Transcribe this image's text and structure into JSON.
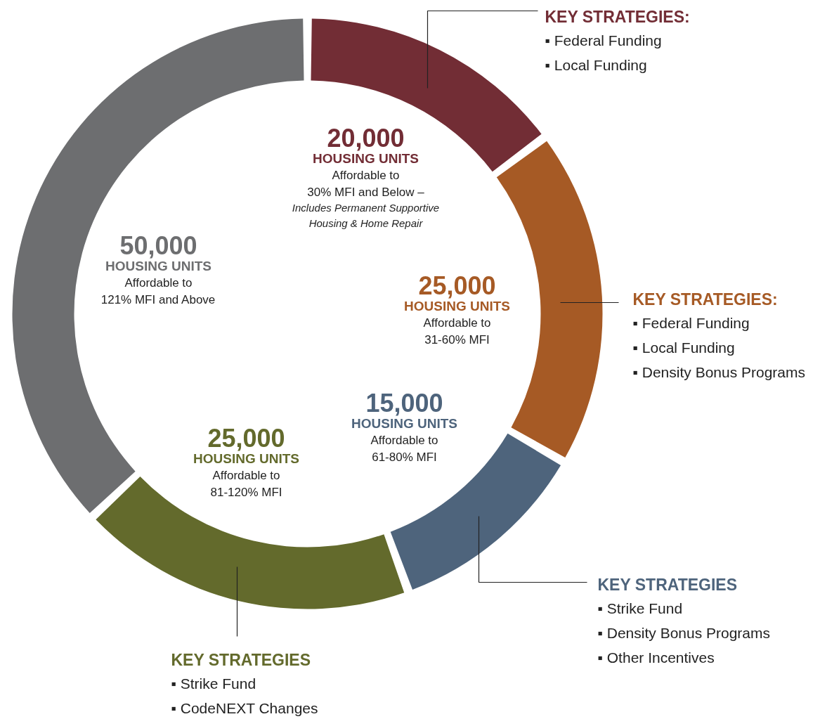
{
  "chart_data": {
    "type": "donut",
    "categories": [
      "HOUSING UNITS\nAffordable to\n30% MFI and Below –\nIncludes Permanent Supportive\nHousing & Home Repair",
      "HOUSING UNITS\nAffordable to\n31-60% MFI",
      "HOUSING UNITS\nAffordable to\n61-80% MFI",
      "HOUSING UNITS\nAffordable to\n81-120% MFI",
      "HOUSING UNITS\nAffordable to\n121% MFI and Above"
    ],
    "values": [
      20000,
      25000,
      15000,
      25000,
      50000
    ],
    "value_labels": [
      "20,000",
      "25,000",
      "15,000",
      "25,000",
      "50,000"
    ],
    "colors": [
      "#722d35",
      "#a65a25",
      "#4e647c",
      "#636a2c",
      "#6d6e70"
    ],
    "annotations": [
      "KEY STRATEGIES:\n▪ Federal Funding\n▪ Local Funding",
      "KEY STRATEGIES:\n▪ Federal Funding\n▪ Local Funding\n▪ Density Bonus Programs",
      "KEY STRATEGIES\n▪ Strike Fund\n▪ Density Bonus Programs\n▪ Other Incentives",
      "KEY STRATEGIES\n▪ Strike Fund\n▪ CodeNEXT Changes"
    ]
  }
}
